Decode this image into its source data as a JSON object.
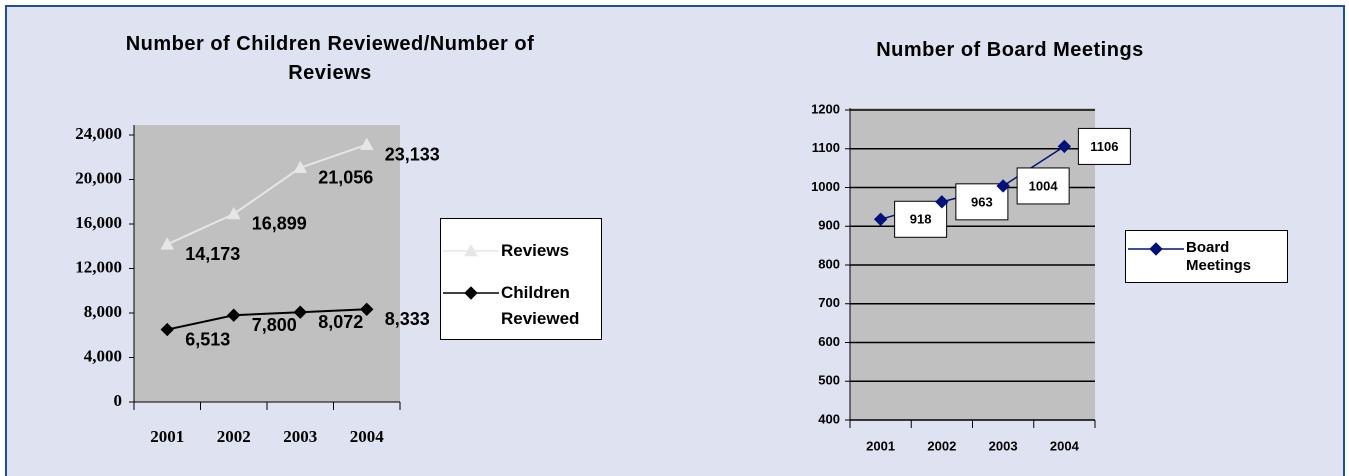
{
  "chart_data": [
    {
      "type": "line",
      "title": "Number of Children Reviewed/Number of Reviews",
      "categories": [
        "2001",
        "2002",
        "2003",
        "2004"
      ],
      "series": [
        {
          "name": "Reviews",
          "color": "#e6e6e6",
          "marker": "triangle",
          "values": [
            14173,
            16899,
            21056,
            23133
          ],
          "value_labels": [
            "14,173",
            "16,899",
            "21,056",
            "23,133"
          ]
        },
        {
          "name": "Children Reviewed",
          "color": "#000000",
          "marker": "diamond",
          "values": [
            6513,
            7800,
            8072,
            8333
          ],
          "value_labels": [
            "6,513",
            "7,800",
            "8,072",
            "8,333"
          ]
        }
      ],
      "ylim": [
        0,
        24000
      ],
      "yticks": [
        0,
        {
          "value": 4000,
          "label": "4,000"
        },
        {
          "value": 8000,
          "label": "8,000"
        },
        {
          "value": 12000,
          "label": "12,000"
        },
        {
          "value": 16000,
          "label": "16,000"
        },
        {
          "value": 20000,
          "label": "20,000"
        },
        {
          "value": 24000,
          "label": "24,000"
        }
      ],
      "grid": false,
      "legend": "right"
    },
    {
      "type": "line",
      "title": "Number of Board Meetings",
      "categories": [
        "2001",
        "2002",
        "2003",
        "2004"
      ],
      "series": [
        {
          "name": "Board Meetings",
          "color": "#00127a",
          "marker": "diamond",
          "values": [
            918,
            963,
            1004,
            1106
          ]
        }
      ],
      "ylim": [
        400,
        1200
      ],
      "yticks": [
        400,
        500,
        600,
        700,
        800,
        900,
        1000,
        1100,
        1200
      ],
      "grid": true,
      "legend": "right"
    }
  ]
}
